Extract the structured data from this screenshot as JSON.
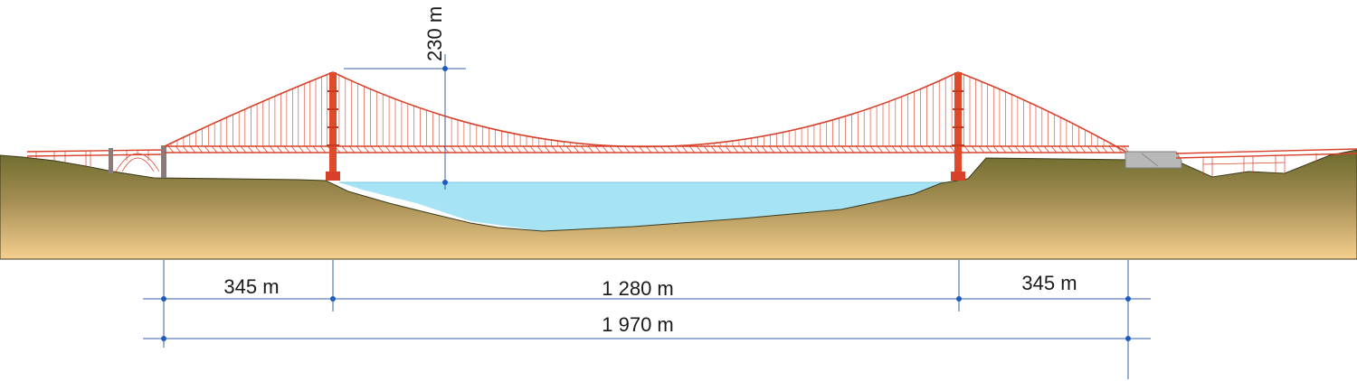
{
  "dimensions": {
    "height": "230 m",
    "side_span_left": "345 m",
    "main_span": "1 280 m",
    "side_span_right": "345 m",
    "total_length": "1 970 m"
  },
  "colors": {
    "bridge": "#d9402a",
    "tower": "#e04a2a",
    "water": "#a6e3f5",
    "ground_top": "#6b6a2c",
    "ground_bottom": "#f5cf8e",
    "dimension_lines": "#3a5fa8",
    "anchorage_left": "#8a7a7a",
    "anchorage_right": "#b0b0b0"
  }
}
